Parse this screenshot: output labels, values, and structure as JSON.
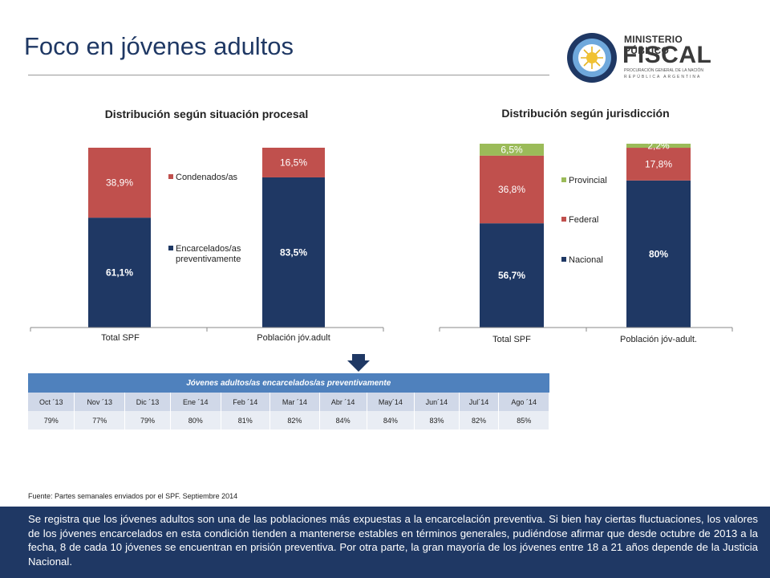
{
  "page": {
    "title": "Foco en jóvenes adultos",
    "source": "Fuente: Partes semanales enviados por el SPF. Septiembre 2014",
    "footer_text": "Se registra que los jóvenes adultos son una de las poblaciones más expuestas a la encarcelación preventiva. Si bien hay ciertas fluctuaciones, los valores de los jóvenes encarcelados en esta condición tienden a mantenerse estables en términos generales, pudiéndose afirmar que desde octubre de 2013 a la fecha, 8 de cada 10 jóvenes se encuentran en prisión preventiva. Por otra parte, la gran mayoría de los jóvenes entre 18 a 21 años depende de la Justicia Nacional."
  },
  "logo": {
    "line1": "MINISTERIO PÚBLICO",
    "line2": "FISCAL",
    "line3": "PROCURACIÓN GENERAL DE LA NACIÓN",
    "line4": "REPÚBLICA ARGENTINA"
  },
  "table": {
    "header": "Jóvenes adultos/as encarcelados/as preventivamente",
    "months": [
      "Oct ´13",
      "Nov ´13",
      "Dic ´13",
      "Ene ´14",
      "Feb ´14",
      "Mar ´14",
      "Abr ´14",
      "May´14",
      "Jun´14",
      "Jul´14",
      "Ago ´14"
    ],
    "values": [
      "79%",
      "77%",
      "79%",
      "80%",
      "81%",
      "82%",
      "84%",
      "84%",
      "83%",
      "82%",
      "85%"
    ]
  },
  "colors": {
    "navy": "#1f3864",
    "red": "#c0504d",
    "green": "#9bbb59",
    "table_header": "#4f81bd"
  },
  "chart_data": [
    {
      "type": "bar",
      "stacked": true,
      "title": "Distribución según situación procesal",
      "categories": [
        "Total SPF",
        "Población jóv.adult"
      ],
      "series": [
        {
          "name": "Encarcelados/as preventivamente",
          "values": [
            61.1,
            83.5
          ],
          "labels": [
            "61,1%",
            "83,5%"
          ],
          "color": "#1f3864"
        },
        {
          "name": "Condenados/as",
          "values": [
            38.9,
            16.5
          ],
          "labels": [
            "38,9%",
            "16,5%"
          ],
          "color": "#c0504d"
        }
      ],
      "ylim": [
        0,
        100
      ],
      "legend": "between bars"
    },
    {
      "type": "bar",
      "stacked": true,
      "title": "Distribución según jurisdicción",
      "categories": [
        "Total SPF",
        "Población jóv-adult."
      ],
      "series": [
        {
          "name": "Nacional",
          "values": [
            56.7,
            80
          ],
          "labels": [
            "56,7%",
            "80%"
          ],
          "color": "#1f3864"
        },
        {
          "name": "Federal",
          "values": [
            36.8,
            17.8
          ],
          "labels": [
            "36,8%",
            "17,8%"
          ],
          "color": "#c0504d"
        },
        {
          "name": "Provincial",
          "values": [
            6.5,
            2.2
          ],
          "labels": [
            "6,5%",
            "2,2%"
          ],
          "color": "#9bbb59"
        }
      ],
      "ylim": [
        0,
        100
      ],
      "legend": "between bars"
    }
  ]
}
